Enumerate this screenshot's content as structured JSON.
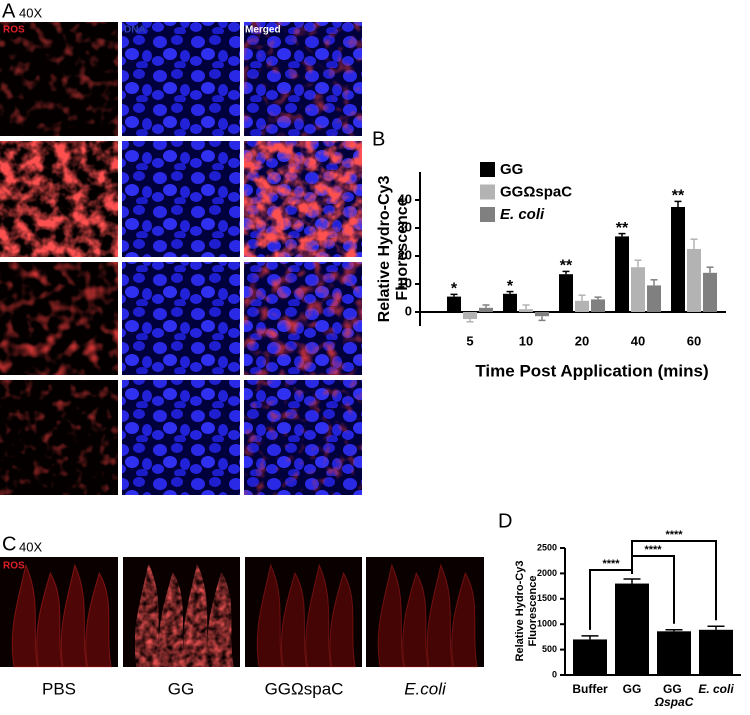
{
  "figure": {
    "panel_a": {
      "label": "A",
      "magnification": "40X",
      "channels": [
        "ROS",
        "DNA",
        "Merged"
      ]
    },
    "panel_b": {
      "label": "B"
    },
    "panel_c": {
      "label": "C",
      "magnification": "40X",
      "channel": "ROS",
      "samples": [
        "PBS",
        "GG",
        "GGΩspaC",
        "E.coli"
      ]
    },
    "panel_d": {
      "label": "D"
    }
  },
  "chart_data": [
    {
      "type": "bar",
      "y_label": [
        "Relative Hydro-Cy3",
        "Fluorescence"
      ],
      "x_label": "Time Post Application (mins)",
      "categories": [
        "5",
        "10",
        "20",
        "40",
        "60"
      ],
      "series": [
        {
          "name": "GG",
          "color": "#000000",
          "values": [
            5.5,
            6.5,
            13.5,
            27,
            37.5
          ],
          "errors": [
            0.8,
            0.8,
            1,
            1,
            2
          ]
        },
        {
          "name": "GGΩspaC",
          "color": "#b3b3b3",
          "values": [
            -2.5,
            1,
            4,
            16,
            22.5
          ],
          "errors": [
            1,
            1.5,
            2,
            2.5,
            3.5
          ]
        },
        {
          "name": "E. coli",
          "color": "#808080",
          "values": [
            1.5,
            -1.5,
            4.5,
            9.5,
            14
          ],
          "errors": [
            1,
            1.5,
            0.8,
            2,
            2
          ]
        }
      ],
      "annotations": [
        "*",
        "*",
        "**",
        "**",
        "**"
      ],
      "ylim": [
        -5,
        50
      ],
      "yticks": [
        0,
        10,
        20,
        30,
        40
      ]
    },
    {
      "type": "bar",
      "y_label": [
        "Relative Hydro-Cy3",
        "Fluorescence"
      ],
      "categories": [
        "Buffer",
        "GG",
        "GG ΩspaC",
        "E. coli"
      ],
      "values": [
        700,
        1800,
        860,
        890
      ],
      "errors": [
        70,
        90,
        30,
        70
      ],
      "color": "#000000",
      "annotations": [
        "****",
        "****",
        "****"
      ],
      "ylim": [
        0,
        2500
      ],
      "yticks": [
        0,
        500,
        1000,
        1500,
        2000,
        2500
      ]
    }
  ]
}
